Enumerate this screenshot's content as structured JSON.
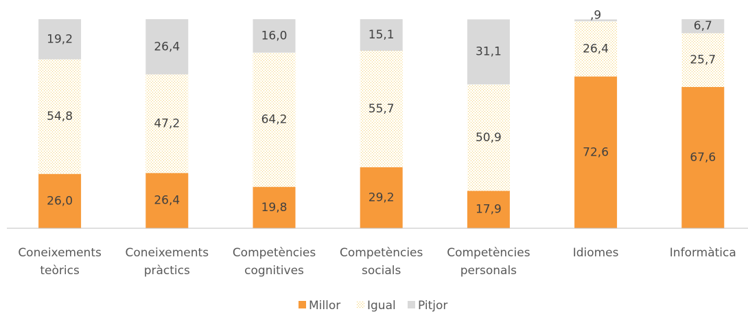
{
  "chart_data": {
    "type": "stacked_bar",
    "categories": [
      "Coneixements teòrics",
      "Coneixements pràctics",
      "Competències cognitives",
      "Competències socials",
      "Competències personals",
      "Idiomes",
      "Informàtica"
    ],
    "series": [
      {
        "name": "Millor",
        "color": "#f79a3a",
        "values": [
          26.0,
          26.4,
          19.8,
          29.2,
          17.9,
          72.6,
          67.6
        ],
        "value_labels": [
          "26,0",
          "26,4",
          "19,8",
          "29,2",
          "17,9",
          "72,6",
          "67,6"
        ]
      },
      {
        "name": "Igual",
        "color": "#f2cf7a",
        "values": [
          54.8,
          47.2,
          64.2,
          55.7,
          50.9,
          26.4,
          25.7
        ],
        "value_labels": [
          "54,8",
          "47,2",
          "64,2",
          "55,7",
          "50,9",
          "26,4",
          "25,7"
        ]
      },
      {
        "name": "Pitjor",
        "color": "#d9d9d9",
        "values": [
          19.2,
          26.4,
          16.0,
          15.1,
          31.1,
          0.9,
          6.7
        ],
        "value_labels": [
          "19,2",
          "26,4",
          "16,0",
          "15,1",
          "31,1",
          ",9",
          "6,7"
        ]
      }
    ],
    "legend": "bottom"
  }
}
